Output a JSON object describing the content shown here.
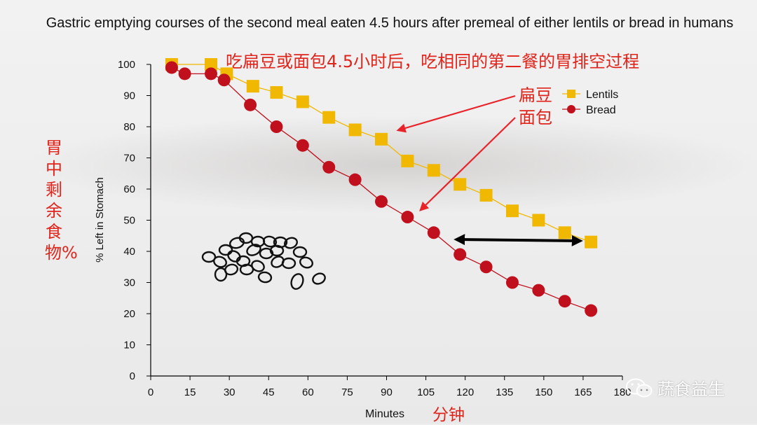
{
  "chart_data": {
    "type": "line",
    "title": "Gastric emptying courses of the second meal eaten 4.5 hours after premeal of either lentils or bread in humans",
    "xlabel": "Minutes",
    "ylabel": "% Left in Stomach",
    "xlim": [
      0,
      180
    ],
    "ylim": [
      0,
      100
    ],
    "xticks": [
      "0",
      "15",
      "30",
      "45",
      "60",
      "75",
      "90",
      "105",
      "120",
      "135",
      "150",
      "165",
      "180"
    ],
    "yticks": [
      "0",
      "10",
      "20",
      "30",
      "40",
      "50",
      "60",
      "70",
      "80",
      "90",
      "100"
    ],
    "grid": false,
    "legend_position": "top-right",
    "series": [
      {
        "name": "Lentils",
        "color": "#f0b800",
        "marker": "square",
        "x": [
          8,
          23,
          29,
          39,
          48,
          58,
          68,
          78,
          88,
          98,
          108,
          118,
          128,
          138,
          148,
          158,
          168
        ],
        "y": [
          100,
          100,
          97,
          93,
          91,
          88,
          83,
          79,
          76,
          69,
          66,
          61.5,
          58,
          53,
          50,
          46,
          43
        ]
      },
      {
        "name": "Bread",
        "color": "#c0101e",
        "marker": "circle",
        "x": [
          8,
          13,
          23,
          28,
          38,
          48,
          58,
          68,
          78,
          88,
          98,
          108,
          118,
          128,
          138,
          148,
          158,
          168
        ],
        "y": [
          99,
          97,
          97,
          95,
          87,
          80,
          74,
          67,
          63,
          56,
          51,
          46,
          39,
          35,
          30,
          27.5,
          24,
          21
        ]
      }
    ]
  },
  "annotations": {
    "cn_title": "吃扁豆或面包4.5小时后，吃相同的第二餐的胃排空过程",
    "cn_ylabel": "胃中剩余食物%",
    "cn_xlabel": "分钟",
    "cn_lentils": "扁豆",
    "cn_bread": "面包",
    "arrow_color": "#e8242a"
  },
  "watermark": {
    "text": "蔬食益生",
    "icon": "wechat-icon"
  }
}
